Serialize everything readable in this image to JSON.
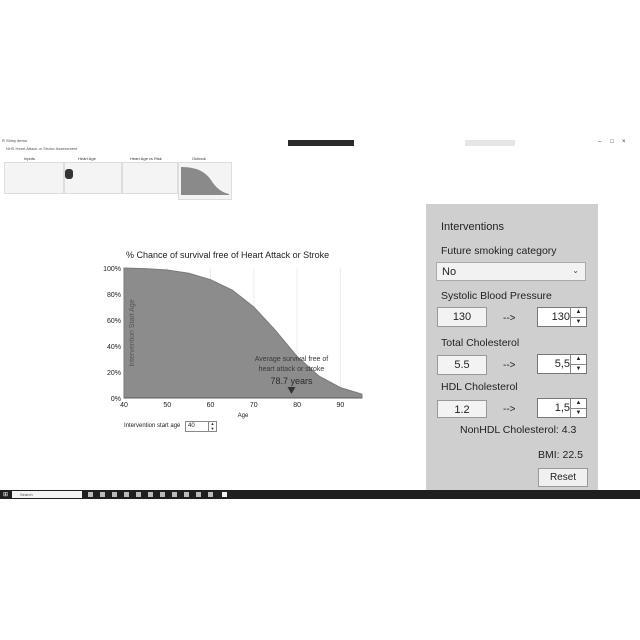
{
  "window": {
    "title": "R Shiny demo",
    "subtitle": "NHS Heart Attack or Stroke Assessment",
    "controls": [
      "–",
      "□",
      "×"
    ]
  },
  "thumbnails": [
    {
      "label": "Inputs"
    },
    {
      "label": "Heart Age"
    },
    {
      "label": "Heart Age vs Risk"
    },
    {
      "label": "Outlook"
    }
  ],
  "chart_data": {
    "type": "area",
    "title": "% Chance of survival free of Heart Attack or Stroke",
    "xlabel": "Age",
    "ylabel": "Intervention Start Age",
    "xlim": [
      40,
      95
    ],
    "ylim": [
      0,
      100
    ],
    "xticks": [
      40,
      50,
      60,
      70,
      80,
      90
    ],
    "yticks": [
      "0%",
      "20%",
      "40%",
      "60%",
      "80%",
      "100%"
    ],
    "x": [
      40,
      45,
      50,
      55,
      60,
      65,
      70,
      75,
      80,
      85,
      90,
      95
    ],
    "values": [
      100,
      99.5,
      98.5,
      96,
      91,
      83,
      70,
      52,
      32,
      17,
      8,
      3
    ],
    "annotation": {
      "line1": "Average survival free of",
      "line2": "heart attack or stroke",
      "value": "78.7 years",
      "x": 78.7
    }
  },
  "intervention_age": {
    "label": "Intervention start age",
    "value": "40"
  },
  "panel": {
    "title": "Interventions",
    "smoking": {
      "label": "Future smoking category",
      "value": "No"
    },
    "sbp": {
      "label": "Systolic Blood Pressure",
      "current": "130",
      "arrow": "-->",
      "target": "130"
    },
    "chol": {
      "label": "Total Cholesterol",
      "current": "5.5",
      "arrow": "-->",
      "target": "5,5"
    },
    "hdl": {
      "label": "HDL Cholesterol",
      "current": "1.2",
      "arrow": "-->",
      "target": "1,5"
    },
    "nonhdl": "NonHDL Cholesterol: 4.3",
    "bmi": "BMI: 22.5",
    "reset": "Reset"
  },
  "taskbar": {
    "search_placeholder": "Search"
  }
}
